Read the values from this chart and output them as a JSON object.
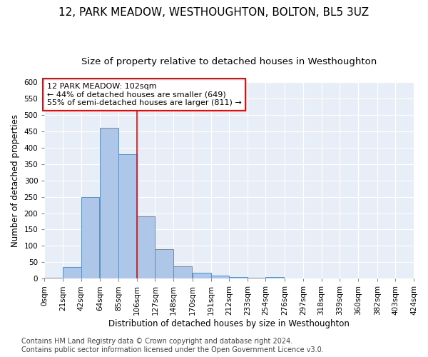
{
  "title": "12, PARK MEADOW, WESTHOUGHTON, BOLTON, BL5 3UZ",
  "subtitle": "Size of property relative to detached houses in Westhoughton",
  "xlabel": "Distribution of detached houses by size in Westhoughton",
  "ylabel": "Number of detached properties",
  "footnote1": "Contains HM Land Registry data © Crown copyright and database right 2024.",
  "footnote2": "Contains public sector information licensed under the Open Government Licence v3.0.",
  "bin_edges": [
    0,
    21,
    42,
    64,
    85,
    106,
    127,
    148,
    170,
    191,
    212,
    233,
    254,
    276,
    297,
    318,
    339,
    360,
    382,
    403,
    424
  ],
  "bin_labels": [
    "0sqm",
    "21sqm",
    "42sqm",
    "64sqm",
    "85sqm",
    "106sqm",
    "127sqm",
    "148sqm",
    "170sqm",
    "191sqm",
    "212sqm",
    "233sqm",
    "254sqm",
    "276sqm",
    "297sqm",
    "318sqm",
    "339sqm",
    "360sqm",
    "382sqm",
    "403sqm",
    "424sqm"
  ],
  "bar_heights": [
    2,
    35,
    250,
    460,
    380,
    190,
    90,
    37,
    18,
    10,
    5,
    2,
    5,
    1,
    1,
    0,
    0,
    0,
    0,
    1
  ],
  "bar_color": "#aec6e8",
  "bar_edgecolor": "#5a8fc0",
  "property_line_x": 106,
  "property_sqm": 102,
  "annotation_text": "12 PARK MEADOW: 102sqm\n← 44% of detached houses are smaller (649)\n55% of semi-detached houses are larger (811) →",
  "annotation_box_color": "white",
  "annotation_box_edgecolor": "red",
  "vline_color": "red",
  "ylim": [
    0,
    600
  ],
  "yticks": [
    0,
    50,
    100,
    150,
    200,
    250,
    300,
    350,
    400,
    450,
    500,
    550,
    600
  ],
  "background_color": "#e8eef7",
  "fig_background": "white",
  "title_fontsize": 11,
  "subtitle_fontsize": 9.5,
  "label_fontsize": 8.5,
  "tick_fontsize": 7.5,
  "annotation_fontsize": 8,
  "footnote_fontsize": 7
}
